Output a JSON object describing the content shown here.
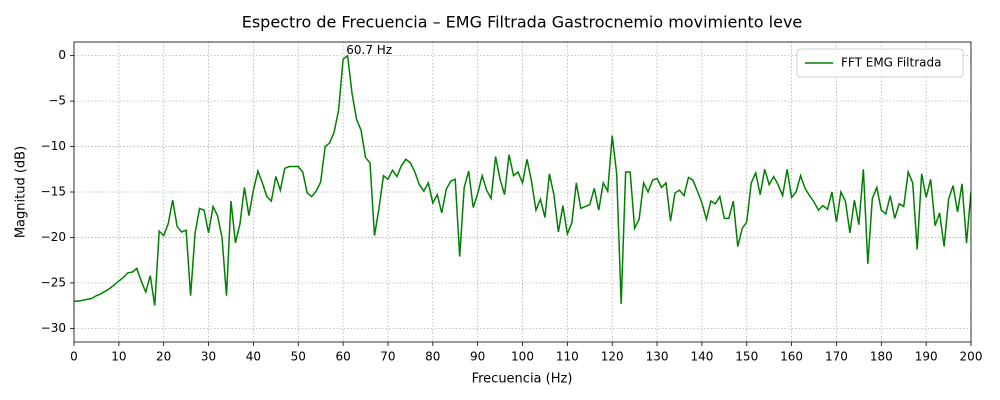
{
  "chart_data": {
    "type": "line",
    "title": "Espectro de Frecuencia – EMG Filtrada Gastrocnemio movimiento leve",
    "xlabel": "Frecuencia (Hz)",
    "ylabel": "Magnitud (dB)",
    "x": [
      0,
      1,
      2,
      3,
      4,
      5,
      6,
      7,
      8,
      9,
      10,
      11,
      12,
      13,
      14,
      15,
      16,
      17,
      18,
      19,
      20,
      21,
      22,
      23,
      24,
      25,
      26,
      27,
      28,
      29,
      30,
      31,
      32,
      33,
      34,
      35,
      36,
      37,
      38,
      39,
      40,
      41,
      42,
      43,
      44,
      45,
      46,
      47,
      48,
      49,
      50,
      51,
      52,
      53,
      54,
      55,
      56,
      57,
      58,
      59,
      60,
      61,
      62,
      63,
      64,
      65,
      66,
      67,
      68,
      69,
      70,
      71,
      72,
      73,
      74,
      75,
      76,
      77,
      78,
      79,
      80,
      81,
      82,
      83,
      84,
      85,
      86,
      87,
      88,
      89,
      90,
      91,
      92,
      93,
      94,
      95,
      96,
      97,
      98,
      99,
      100,
      101,
      102,
      103,
      104,
      105,
      106,
      107,
      108,
      109,
      110,
      111,
      112,
      113,
      114,
      115,
      116,
      117,
      118,
      119,
      120,
      121,
      122,
      123,
      124,
      125,
      126,
      127,
      128,
      129,
      130,
      131,
      132,
      133,
      134,
      135,
      136,
      137,
      138,
      139,
      140,
      141,
      142,
      143,
      144,
      145,
      146,
      147,
      148,
      149,
      150,
      151,
      152,
      153,
      154,
      155,
      156,
      157,
      158,
      159,
      160,
      161,
      162,
      163,
      164,
      165,
      166,
      167,
      168,
      169,
      170,
      171,
      172,
      173,
      174,
      175,
      176,
      177,
      178,
      179,
      180,
      181,
      182,
      183,
      184,
      185,
      186,
      187,
      188,
      189,
      190,
      191,
      192,
      193,
      194,
      195,
      196,
      197,
      198,
      199,
      200
    ],
    "series": [
      {
        "name": "FFT EMG Filtrada",
        "color": "#008000",
        "values": [
          -27,
          -27,
          -26.9,
          -26.8,
          -26.7,
          -26.4,
          -26.2,
          -25.9,
          -25.6,
          -25.2,
          -24.8,
          -24.4,
          -23.9,
          -23.8,
          -23.4,
          -24.8,
          -26,
          -24.2,
          -27.5,
          -19.3,
          -19.8,
          -18.5,
          -15.9,
          -18.8,
          -19.4,
          -19.2,
          -26.4,
          -19.5,
          -16.8,
          -17,
          -19.5,
          -16.6,
          -17.6,
          -20,
          -26.4,
          -16,
          -20.6,
          -18.5,
          -14.5,
          -17.6,
          -14.8,
          -12.7,
          -14,
          -15.5,
          -16,
          -13.3,
          -14.8,
          -12.4,
          -12.2,
          -12.2,
          -12.2,
          -12.8,
          -15.1,
          -15.5,
          -14.9,
          -13.9,
          -10,
          -9.6,
          -8.4,
          -6,
          -0.4,
          0,
          -4.2,
          -7,
          -8.2,
          -11.2,
          -11.8,
          -19.8,
          -16.8,
          -13.2,
          -13.6,
          -12.6,
          -13.3,
          -12.1,
          -11.4,
          -11.8,
          -12.8,
          -14.2,
          -14.9,
          -14,
          -16.2,
          -15.3,
          -17.3,
          -14.7,
          -13.8,
          -13.6,
          -22.1,
          -14.5,
          -12.7,
          -16.7,
          -15.2,
          -13.2,
          -14.8,
          -15.7,
          -11.1,
          -13.6,
          -15.3,
          -10.9,
          -13.2,
          -12.8,
          -14,
          -11.4,
          -13.8,
          -17,
          -15.8,
          -17.8,
          -13,
          -15.3,
          -19.4,
          -16.5,
          -19.6,
          -18.4,
          -14,
          -16.8,
          -16.6,
          -16.4,
          -14.6,
          -17,
          -14,
          -14.9,
          -8.8,
          -13,
          -27.3,
          -12.8,
          -12.8,
          -19,
          -18,
          -14,
          -15,
          -13.7,
          -13.5,
          -14.5,
          -14,
          -18.2,
          -15.1,
          -14.8,
          -15.4,
          -13.4,
          -13.7,
          -14.9,
          -16.2,
          -18,
          -16,
          -16.3,
          -15.5,
          -17.9,
          -17.9,
          -16,
          -21,
          -19,
          -18.3,
          -14,
          -12.9,
          -15.3,
          -12.5,
          -14.2,
          -13.3,
          -14.2,
          -15.4,
          -12.5,
          -15.6,
          -15,
          -13.2,
          -14.6,
          -15.4,
          -16.1,
          -17,
          -16.5,
          -16.9,
          -15,
          -18.3,
          -15,
          -16,
          -19.5,
          -15.9,
          -18.6,
          -12.5,
          -22.9,
          -15.7,
          -14.5,
          -17,
          -17.4,
          -15.4,
          -17.9,
          -16.3,
          -16.6,
          -12.8,
          -14,
          -21.3,
          -13,
          -15.6,
          -13.6,
          -18.7,
          -17.3,
          -21,
          -15.8,
          -14.3,
          -17.2,
          -14.1,
          -20.6,
          -15
        ]
      }
    ],
    "annotations": [
      {
        "text": "60.7 Hz",
        "x": 60.7,
        "y": 0,
        "color": "#ff0000"
      }
    ],
    "xlim": [
      0,
      200
    ],
    "ylim": [
      -31.5,
      1.5
    ],
    "xticks": [
      0,
      10,
      20,
      30,
      40,
      50,
      60,
      70,
      80,
      90,
      100,
      110,
      120,
      130,
      140,
      150,
      160,
      170,
      180,
      190,
      200
    ],
    "yticks": [
      0,
      {
        "value": -5,
        "label": "−5"
      },
      {
        "value": -10,
        "label": "−10"
      },
      {
        "value": -15,
        "label": "−15"
      },
      {
        "value": -20,
        "label": "−20"
      },
      {
        "value": -25,
        "label": "−25"
      },
      {
        "value": -30,
        "label": "−30"
      }
    ],
    "grid": true,
    "legend": "upper right"
  }
}
